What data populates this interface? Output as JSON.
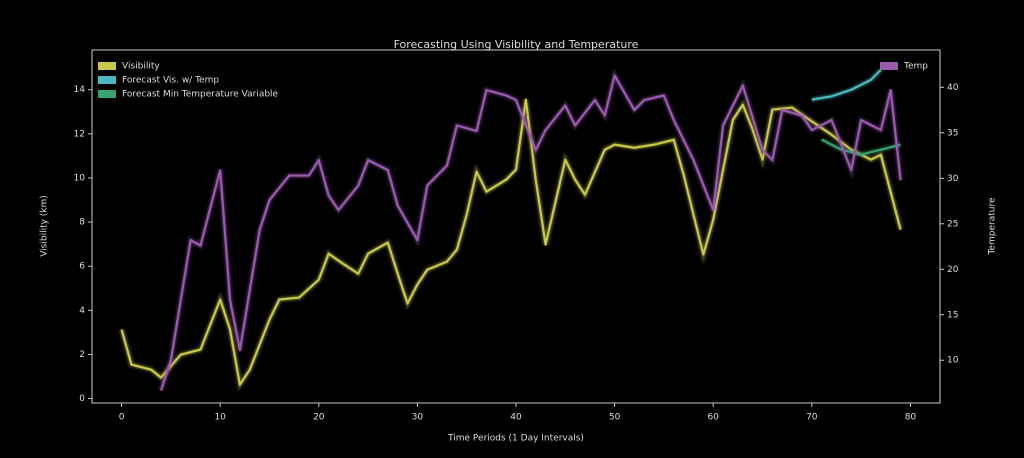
{
  "chart_data": {
    "type": "line",
    "title": "Forecasting Using Visibility and Temperature",
    "xlabel": "Time Periods (1 Day Intervals)",
    "ylabel": "Visibility (km)",
    "y2label": "Temperature",
    "xlim": [
      -3,
      83
    ],
    "xticks": [
      0,
      10,
      20,
      30,
      40,
      50,
      60,
      70,
      80
    ],
    "ylim": [
      -0.2,
      15.8
    ],
    "yticks": [
      0,
      2,
      4,
      6,
      8,
      10,
      12,
      14
    ],
    "y2lim": [
      5.3,
      44.1
    ],
    "y2ticks": [
      10,
      15,
      20,
      25,
      30,
      35,
      40
    ],
    "legend": "upper left",
    "legend2": "upper right",
    "series": [
      {
        "name": "Visibility",
        "color": "#c8c84a",
        "x": [
          0,
          1,
          3,
          4,
          6,
          8,
          10,
          11,
          12,
          13,
          15,
          16,
          18,
          20,
          21,
          22,
          24,
          25,
          27,
          28,
          29,
          30,
          31,
          33,
          34,
          35,
          36,
          37,
          39,
          40,
          41,
          42,
          43,
          45,
          46,
          47,
          49,
          50,
          52,
          54,
          56,
          57,
          59,
          60,
          62,
          63,
          64,
          65,
          66,
          68,
          69,
          72,
          74,
          76,
          77,
          79
        ],
        "values": [
          3.13,
          1.54,
          1.31,
          0.95,
          1.99,
          2.22,
          4.49,
          3.13,
          0.63,
          1.31,
          3.58,
          4.49,
          4.58,
          5.39,
          6.57,
          6.25,
          5.66,
          6.57,
          7.07,
          5.66,
          4.31,
          5.17,
          5.84,
          6.21,
          6.75,
          8.34,
          10.29,
          9.38,
          9.92,
          10.38,
          13.55,
          9.92,
          6.98,
          10.83,
          9.92,
          9.24,
          11.28,
          11.51,
          11.37,
          11.51,
          11.73,
          10.15,
          6.53,
          8.11,
          12.64,
          13.32,
          12.19,
          10.83,
          13.1,
          13.19,
          12.87,
          11.96,
          11.28,
          10.83,
          11.05,
          7.66
        ]
      },
      {
        "name": "Forecast Vis. w/ Temp",
        "color": "#4ab8c0",
        "x": [
          70,
          72,
          74,
          76,
          77
        ],
        "values": [
          13.55,
          13.7,
          14.0,
          14.45,
          14.9
        ]
      },
      {
        "name": "Forecast Min Temperature Variable",
        "color": "#3aa070",
        "x": [
          71,
          73,
          75,
          77,
          79
        ],
        "values": [
          11.74,
          11.28,
          11.06,
          11.28,
          11.51
        ]
      },
      {
        "name": "Temp",
        "color": "#9a5ab0",
        "axis": "y2",
        "x": [
          4,
          5,
          7,
          8,
          10,
          11,
          12,
          14,
          15,
          17,
          19,
          20,
          21,
          22,
          24,
          25,
          27,
          28,
          30,
          31,
          33,
          34,
          36,
          37,
          39,
          40,
          42,
          43,
          45,
          46,
          48,
          49,
          50,
          52,
          53,
          55,
          56,
          58,
          60,
          61,
          63,
          65,
          66,
          67,
          69,
          70,
          72,
          74,
          75,
          77,
          78,
          79
        ],
        "values": [
          6.7,
          10,
          23.2,
          22.6,
          30.9,
          16.6,
          11.1,
          24.3,
          27.6,
          30.3,
          30.3,
          32,
          28.1,
          26.5,
          29.2,
          32,
          30.9,
          27,
          23.2,
          29.2,
          31.4,
          35.8,
          35.2,
          39.7,
          39.1,
          38.6,
          33.1,
          35.3,
          38,
          35.8,
          38.6,
          36.9,
          41.3,
          37.5,
          38.6,
          39.1,
          36.4,
          32,
          26.5,
          35.8,
          40.2,
          33.1,
          32,
          37.5,
          36.9,
          35.3,
          36.4,
          30.9,
          36.4,
          35.3,
          39.7,
          29.8
        ]
      }
    ]
  }
}
